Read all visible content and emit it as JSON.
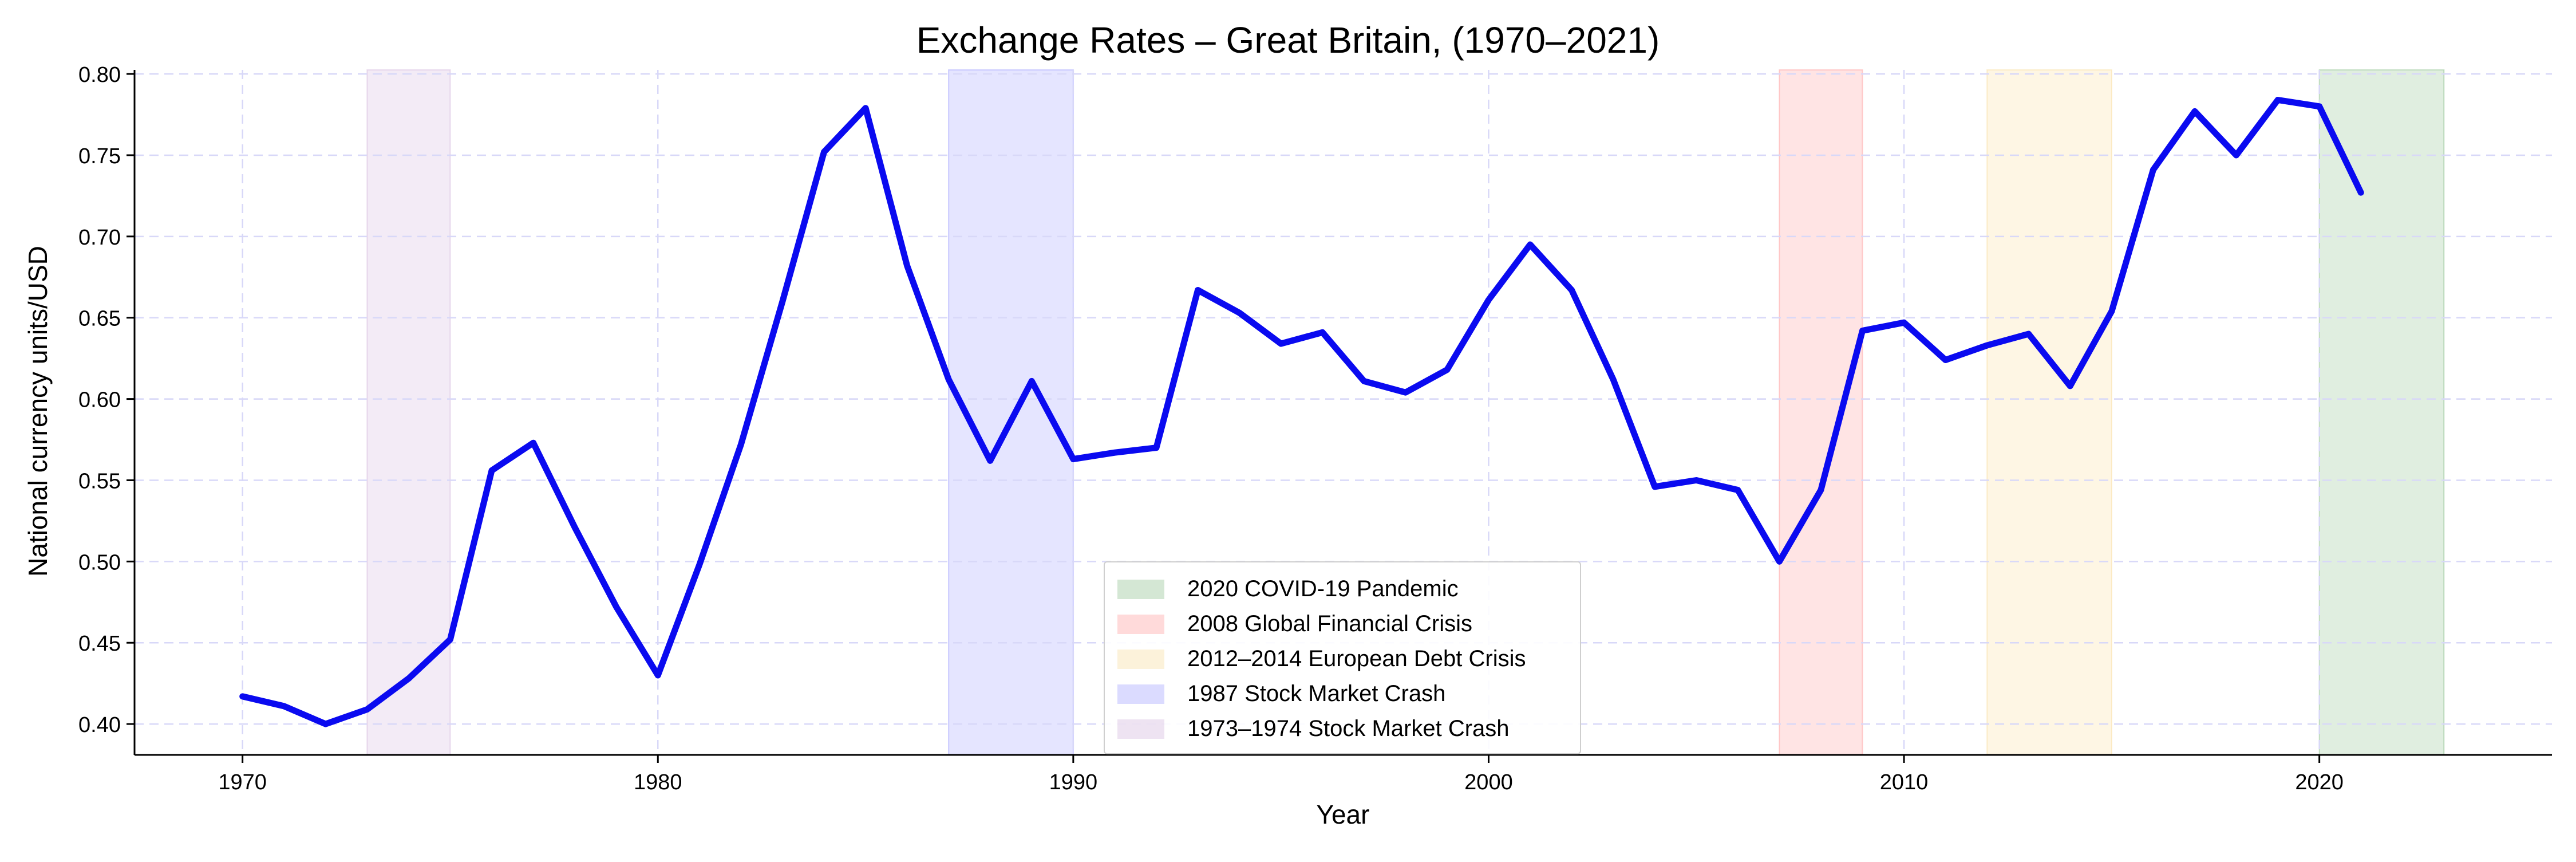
{
  "chart_data": {
    "type": "line",
    "title": "Exchange Rates – Great Britain, (1970–2021)",
    "xlabel": "Year",
    "ylabel": "National currency units/USD",
    "xlim": [
      1967.4,
      2025.6
    ],
    "ylim": [
      0.381,
      0.8025
    ],
    "xticks": [
      1970,
      1980,
      1990,
      2000,
      2010,
      2020
    ],
    "yticks": [
      "0.40",
      "0.45",
      "0.50",
      "0.55",
      "0.60",
      "0.65",
      "0.70",
      "0.75",
      "0.80"
    ],
    "grid": true,
    "legend_position": "bottom-center",
    "line_color": "#0a0af0",
    "series": [
      {
        "x": [
          1970,
          1971,
          1972,
          1973,
          1974,
          1975,
          1976,
          1977,
          1978,
          1979,
          1980,
          1981,
          1982,
          1983,
          1984,
          1985,
          1986,
          1987,
          1988,
          1989,
          1990,
          1991,
          1992,
          1993,
          1994,
          1995,
          1996,
          1997,
          1998,
          1999,
          2000,
          2001,
          2002,
          2003,
          2004,
          2005,
          2006,
          2007,
          2008,
          2009,
          2010,
          2011,
          2012,
          2013,
          2014,
          2015,
          2016,
          2017,
          2018,
          2019,
          2020,
          2021
        ],
        "y": [
          0.417,
          0.411,
          0.4,
          0.409,
          0.428,
          0.452,
          0.556,
          0.573,
          0.521,
          0.472,
          0.43,
          0.498,
          0.572,
          0.66,
          0.752,
          0.779,
          0.682,
          0.612,
          0.562,
          0.611,
          0.563,
          0.567,
          0.57,
          0.667,
          0.653,
          0.634,
          0.641,
          0.611,
          0.604,
          0.618,
          0.661,
          0.695,
          0.667,
          0.612,
          0.546,
          0.55,
          0.544,
          0.5,
          0.544,
          0.642,
          0.647,
          0.624,
          0.633,
          0.64,
          0.608,
          0.654,
          0.741,
          0.777,
          0.75,
          0.784,
          0.78,
          0.727
        ]
      }
    ],
    "shaded_periods": [
      {
        "label": "2020 COVID-19 Pandemic",
        "start": 2020,
        "end": 2023,
        "color": "#2e8b2e"
      },
      {
        "label": "2008 Global Financial Crisis",
        "start": 2007,
        "end": 2009,
        "color": "#ff4d4d"
      },
      {
        "label": "2012–2014 European Debt Crisis",
        "start": 2012,
        "end": 2015,
        "color": "#f5c04a"
      },
      {
        "label": "1987 Stock Market Crash",
        "start": 1987,
        "end": 1990,
        "color": "#5050ff"
      },
      {
        "label": "1973–1974 Stock Market Crash",
        "start": 1973,
        "end": 1975,
        "color": "#b07ac0"
      }
    ]
  }
}
